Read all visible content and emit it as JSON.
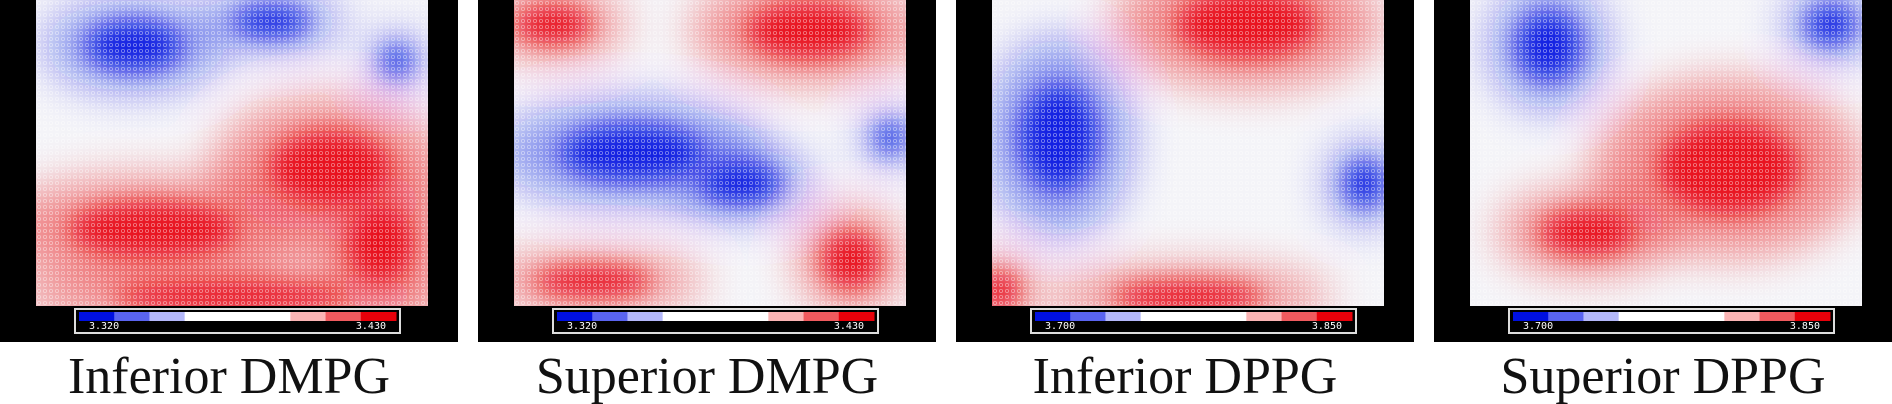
{
  "panels": [
    {
      "caption": "Inferior DMPG",
      "colorbar": {
        "min_label": "3.320",
        "max_label": "3.430"
      }
    },
    {
      "caption": "Superior DMPG",
      "colorbar": {
        "min_label": "3.320",
        "max_label": "3.430"
      }
    },
    {
      "caption": "Inferior DPPG",
      "colorbar": {
        "min_label": "3.700",
        "max_label": "3.850"
      }
    },
    {
      "caption": "Superior DPPG",
      "colorbar": {
        "min_label": "3.700",
        "max_label": "3.850"
      }
    }
  ]
}
